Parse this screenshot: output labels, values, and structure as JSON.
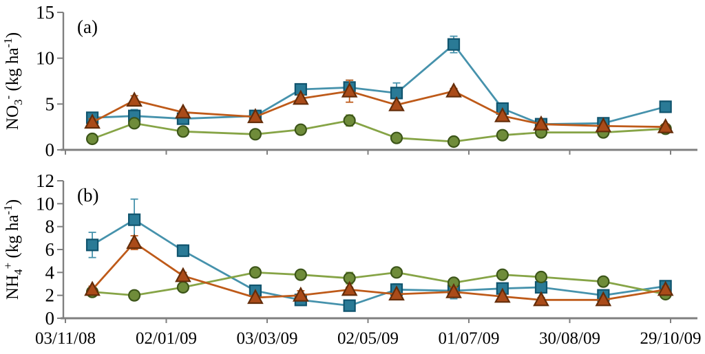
{
  "figure": {
    "background": "#ffffff",
    "description": "Two stacked line charts of soil nitrogen over time with error bars"
  },
  "x_axis": {
    "tick_labels": [
      "03/11/08",
      "02/01/09",
      "03/03/09",
      "02/05/09",
      "01/07/09",
      "30/08/09",
      "29/10/09"
    ],
    "tick_days": [
      0,
      60,
      120,
      180,
      240,
      300,
      360
    ],
    "range_days": [
      0,
      376
    ],
    "axis_color": "#7f7f7f",
    "label_color": "#000000"
  },
  "chart_data": [
    {
      "type": "line",
      "panel_label": "(a)",
      "ylabel": "NO3- (kg ha-1)",
      "ylabel_parts": [
        [
          "NO",
          "n"
        ],
        [
          "3",
          "sub"
        ],
        [
          "-",
          "sup"
        ],
        [
          " (kg ha",
          "n"
        ],
        [
          "-1",
          "sup"
        ],
        [
          ")",
          "n"
        ]
      ],
      "ylim": [
        0,
        15
      ],
      "yticks": [
        0,
        5,
        10,
        15
      ],
      "grid": false,
      "legend": "none",
      "x_days": [
        16,
        41,
        70,
        113,
        140,
        169,
        197,
        231,
        260,
        283,
        320,
        357
      ],
      "series": [
        {
          "name": "blue-squares",
          "marker": "square",
          "line_color": "#4692AC",
          "fill": "#2A7A96",
          "edge": "#10546E",
          "values": [
            3.5,
            3.7,
            3.4,
            3.7,
            6.6,
            6.8,
            6.2,
            11.5,
            4.5,
            2.8,
            2.9,
            4.7
          ],
          "errors": [
            0.4,
            0.7,
            0.2,
            0.2,
            0.4,
            0.8,
            1.1,
            0.9,
            0.4,
            0.2,
            0.4,
            0.6
          ]
        },
        {
          "name": "green-circles",
          "marker": "circle",
          "line_color": "#86A446",
          "fill": "#6F8C3A",
          "edge": "#3C5519",
          "values": [
            1.2,
            2.9,
            2.0,
            1.7,
            2.2,
            3.2,
            1.3,
            0.9,
            1.6,
            1.9,
            1.9,
            2.3
          ],
          "errors": [
            0.2,
            0.4,
            0.2,
            0.2,
            0.2,
            0.6,
            0.2,
            0.2,
            0.2,
            0.2,
            0.2,
            0.2
          ]
        },
        {
          "name": "orange-triangles",
          "marker": "triangle",
          "line_color": "#BE5A19",
          "fill": "#AA4B19",
          "edge": "#642D0A",
          "values": [
            3.0,
            5.4,
            4.1,
            3.6,
            5.6,
            6.4,
            4.9,
            6.4,
            3.7,
            2.8,
            2.6,
            2.5
          ],
          "errors": [
            0.4,
            0.5,
            0.3,
            0.2,
            0.4,
            1.2,
            0.3,
            0.3,
            0.3,
            0.2,
            0.2,
            0.3
          ]
        }
      ]
    },
    {
      "type": "line",
      "panel_label": "(b)",
      "ylabel": "NH4+ (kg ha-1)",
      "ylabel_parts": [
        [
          "NH",
          "n"
        ],
        [
          "4",
          "sub"
        ],
        [
          "+",
          "sup"
        ],
        [
          " (kg ha",
          "n"
        ],
        [
          "-1",
          "sup"
        ],
        [
          ")",
          "n"
        ]
      ],
      "ylim": [
        0,
        12
      ],
      "yticks": [
        0,
        2,
        4,
        6,
        8,
        10,
        12
      ],
      "grid": false,
      "legend": "none",
      "x_days": [
        16,
        41,
        70,
        113,
        140,
        169,
        197,
        231,
        260,
        283,
        320,
        357
      ],
      "series": [
        {
          "name": "blue-squares",
          "marker": "square",
          "line_color": "#4692AC",
          "fill": "#2A7A96",
          "edge": "#10546E",
          "values": [
            6.4,
            8.6,
            5.9,
            2.4,
            1.6,
            1.1,
            2.5,
            2.4,
            2.6,
            2.7,
            2.0,
            2.8
          ],
          "errors": [
            1.1,
            1.8,
            0.5,
            0.3,
            0.2,
            0.2,
            0.5,
            0.7,
            0.2,
            0.3,
            0.2,
            0.3
          ]
        },
        {
          "name": "green-circles",
          "marker": "circle",
          "line_color": "#86A446",
          "fill": "#6F8C3A",
          "edge": "#3C5519",
          "values": [
            2.3,
            2.0,
            2.7,
            4.0,
            3.8,
            3.5,
            4.0,
            3.1,
            3.8,
            3.6,
            3.2,
            2.1
          ],
          "errors": [
            0.2,
            0.4,
            0.2,
            0.4,
            0.2,
            0.5,
            0.2,
            0.3,
            0.2,
            0.2,
            0.3,
            0.2
          ]
        },
        {
          "name": "orange-triangles",
          "marker": "triangle",
          "line_color": "#BE5A19",
          "fill": "#AA4B19",
          "edge": "#642D0A",
          "values": [
            2.5,
            6.6,
            3.7,
            1.8,
            2.0,
            2.5,
            2.1,
            2.3,
            1.9,
            1.6,
            1.6,
            2.5
          ],
          "errors": [
            0.3,
            0.6,
            0.3,
            0.2,
            0.4,
            0.2,
            0.2,
            0.4,
            0.2,
            0.2,
            0.2,
            0.3
          ]
        }
      ]
    }
  ]
}
